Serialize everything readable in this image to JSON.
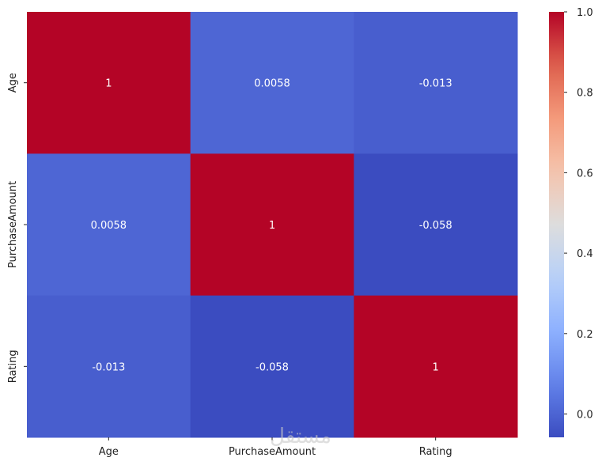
{
  "chart_data": {
    "type": "heatmap",
    "title": "",
    "xlabel": "",
    "ylabel": "",
    "x_categories": [
      "Age",
      "PurchaseAmount",
      "Rating"
    ],
    "y_categories": [
      "Age",
      "PurchaseAmount",
      "Rating"
    ],
    "values": [
      [
        1,
        0.0058,
        -0.013
      ],
      [
        0.0058,
        1,
        -0.058
      ],
      [
        -0.013,
        -0.058,
        1
      ]
    ],
    "annotations": [
      [
        "1",
        "0.0058",
        "-0.013"
      ],
      [
        "0.0058",
        "1",
        "-0.058"
      ],
      [
        "-0.013",
        "-0.058",
        "1"
      ]
    ],
    "colormap": "coolwarm",
    "colorbar": {
      "range": [
        -0.058,
        1.0
      ],
      "ticks": [
        0.0,
        0.2,
        0.4,
        0.6,
        0.8,
        1.0
      ],
      "tick_labels": [
        "0.0",
        "0.2",
        "0.4",
        "0.6",
        "0.8",
        "1.0"
      ]
    },
    "colors": {
      "high": "#b40426",
      "low": "#3b4cc0"
    }
  },
  "watermark": {
    "text": "مستقل"
  }
}
